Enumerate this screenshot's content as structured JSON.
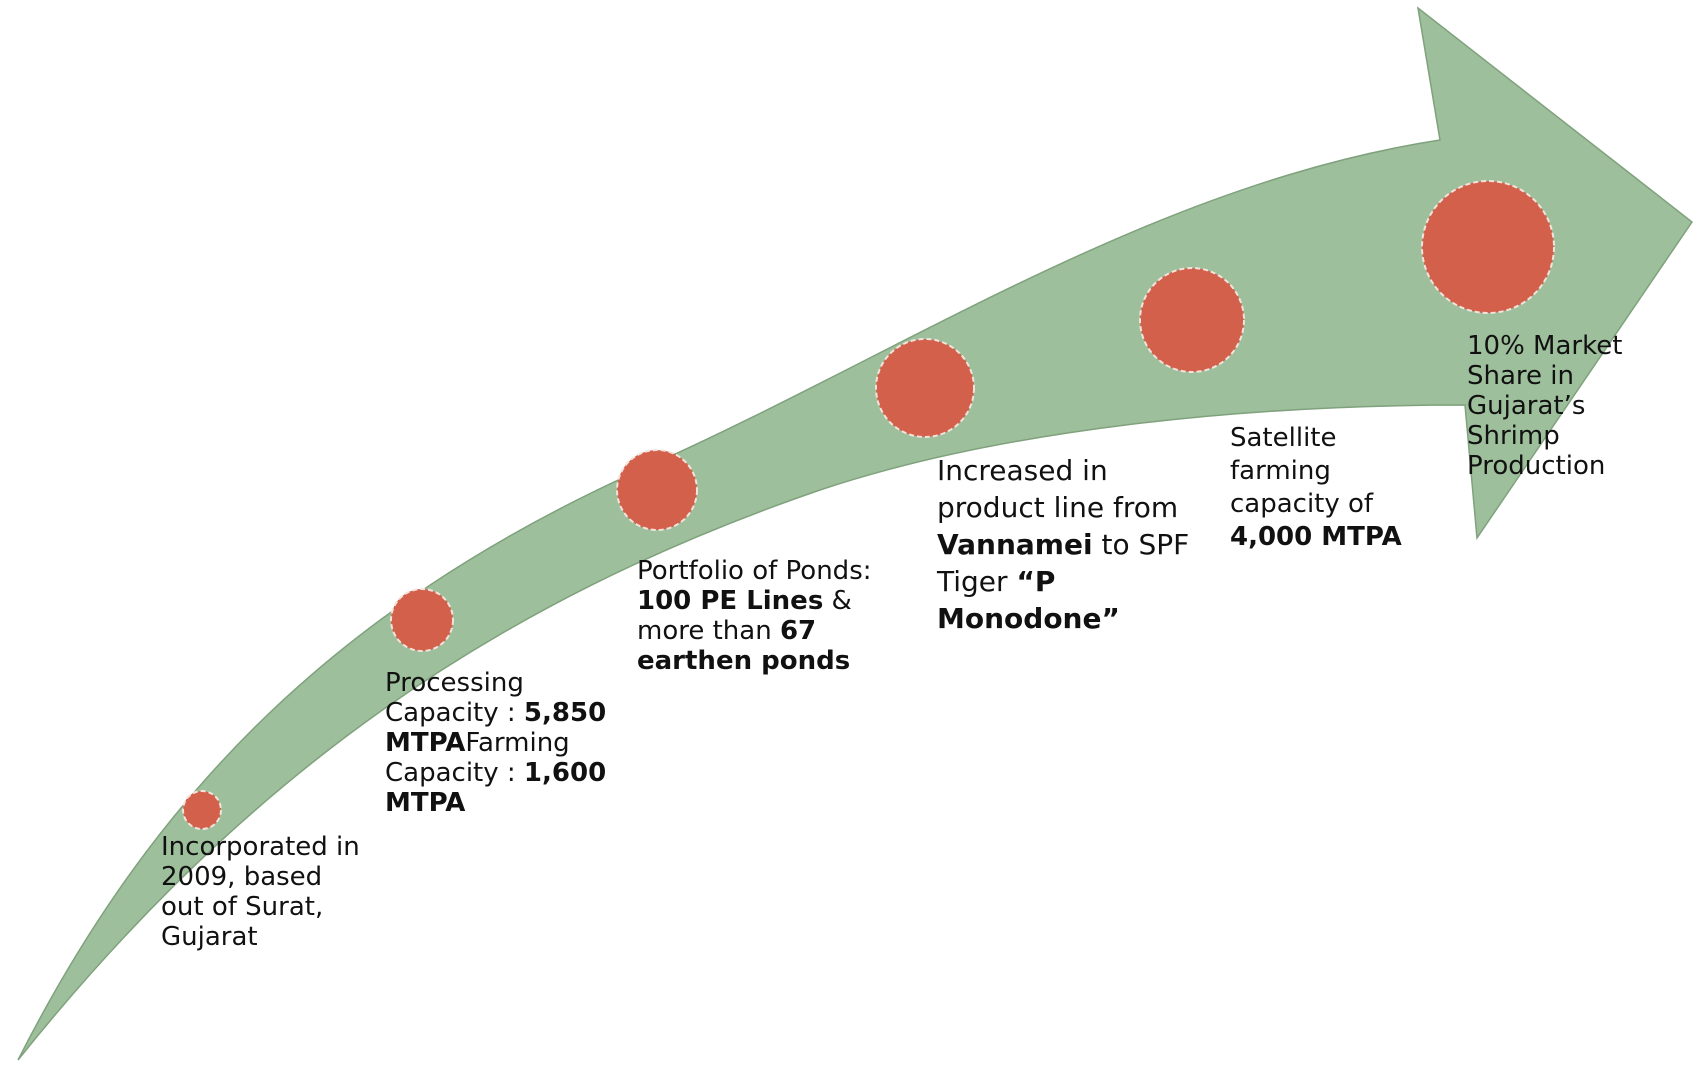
{
  "colors": {
    "arrow_fill": "#9dbf9b",
    "arrow_stroke": "#7fa27d",
    "circle_fill": "#d2604a",
    "circle_stroke": "#f3e3dc",
    "text": "#111111"
  },
  "milestones": [
    {
      "text": "Incorporated in 2009, based out of Surat, Gujarat"
    },
    {
      "text_a": "Processing Capacity : ",
      "bold_a": "5,850 MTPA",
      "text_b": "Farming Capacity : ",
      "bold_b": "1,600 MTPA"
    },
    {
      "text_a": "Portfolio of Ponds: ",
      "bold_a": "100 PE Lines",
      "text_b": " & more than ",
      "bold_b": "67 earthen ponds"
    },
    {
      "text_a": "Increased in product line from ",
      "bold_a": "Vannamei",
      "text_b": " to SPF Tiger ",
      "bold_b": "“P Monodone”"
    },
    {
      "text_a": "Satellite farming capacity of ",
      "bold_a": "4,000 MTPA"
    },
    {
      "text": "10% Market Share in Gujarat’s Shrimp Production"
    }
  ]
}
